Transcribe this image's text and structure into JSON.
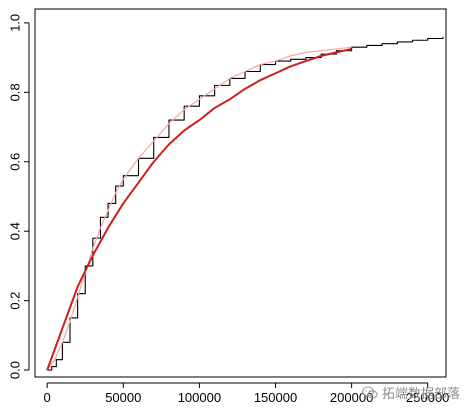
{
  "chart_data": {
    "type": "line",
    "title": "",
    "xlabel": "",
    "ylabel": "",
    "xlim": [
      -8000,
      262000
    ],
    "ylim": [
      -0.02,
      1.04
    ],
    "x_ticks": [
      0,
      50000,
      100000,
      150000,
      200000,
      250000
    ],
    "y_ticks": [
      0.0,
      0.2,
      0.4,
      0.6,
      0.8,
      1.0
    ],
    "x_tick_labels": [
      "0",
      "50000",
      "100000",
      "150000",
      "200000",
      "250000"
    ],
    "y_tick_labels": [
      "0.0",
      "0.2",
      "0.4",
      "0.6",
      "0.8",
      "1.0"
    ],
    "grid": false,
    "series": [
      {
        "color": "#000000",
        "style": "step",
        "x": [
          0,
          3000,
          6000,
          10000,
          15000,
          20000,
          25000,
          30000,
          35000,
          40000,
          45000,
          50000,
          60000,
          70000,
          80000,
          90000,
          100000,
          110000,
          120000,
          130000,
          140000,
          150000,
          160000,
          170000,
          180000,
          190000,
          200000,
          210000,
          220000,
          230000,
          240000,
          250000,
          260000
        ],
        "y": [
          0.0,
          0.01,
          0.03,
          0.08,
          0.15,
          0.22,
          0.3,
          0.38,
          0.44,
          0.48,
          0.53,
          0.56,
          0.61,
          0.67,
          0.72,
          0.76,
          0.79,
          0.82,
          0.84,
          0.86,
          0.88,
          0.89,
          0.895,
          0.9,
          0.91,
          0.92,
          0.93,
          0.935,
          0.94,
          0.945,
          0.95,
          0.955,
          0.96
        ]
      },
      {
        "color": "#f4a7a7",
        "style": "line",
        "x": [
          0,
          5000,
          10000,
          15000,
          20000,
          25000,
          30000,
          35000,
          40000,
          45000,
          50000,
          60000,
          70000,
          80000,
          90000,
          100000,
          110000,
          120000,
          130000,
          140000,
          150000,
          160000,
          170000,
          180000,
          190000,
          200000
        ],
        "y": [
          0.0,
          0.03,
          0.08,
          0.14,
          0.21,
          0.28,
          0.35,
          0.41,
          0.46,
          0.51,
          0.55,
          0.61,
          0.66,
          0.71,
          0.75,
          0.78,
          0.81,
          0.84,
          0.86,
          0.88,
          0.89,
          0.905,
          0.915,
          0.92,
          0.925,
          0.93
        ]
      },
      {
        "color": "#cc1f1f",
        "style": "line",
        "x": [
          0,
          10000,
          20000,
          30000,
          40000,
          50000,
          60000,
          70000,
          80000,
          90000,
          100000,
          110000,
          120000,
          130000,
          140000,
          150000,
          160000,
          170000,
          180000,
          190000,
          200000
        ],
        "y": [
          0.0,
          0.12,
          0.24,
          0.33,
          0.41,
          0.48,
          0.54,
          0.6,
          0.65,
          0.69,
          0.72,
          0.755,
          0.78,
          0.81,
          0.835,
          0.855,
          0.875,
          0.89,
          0.905,
          0.915,
          0.925
        ]
      }
    ]
  },
  "watermark": {
    "icon": "wechat-icon",
    "text": "拓端数据部落",
    "color": "#8a8a8a"
  }
}
